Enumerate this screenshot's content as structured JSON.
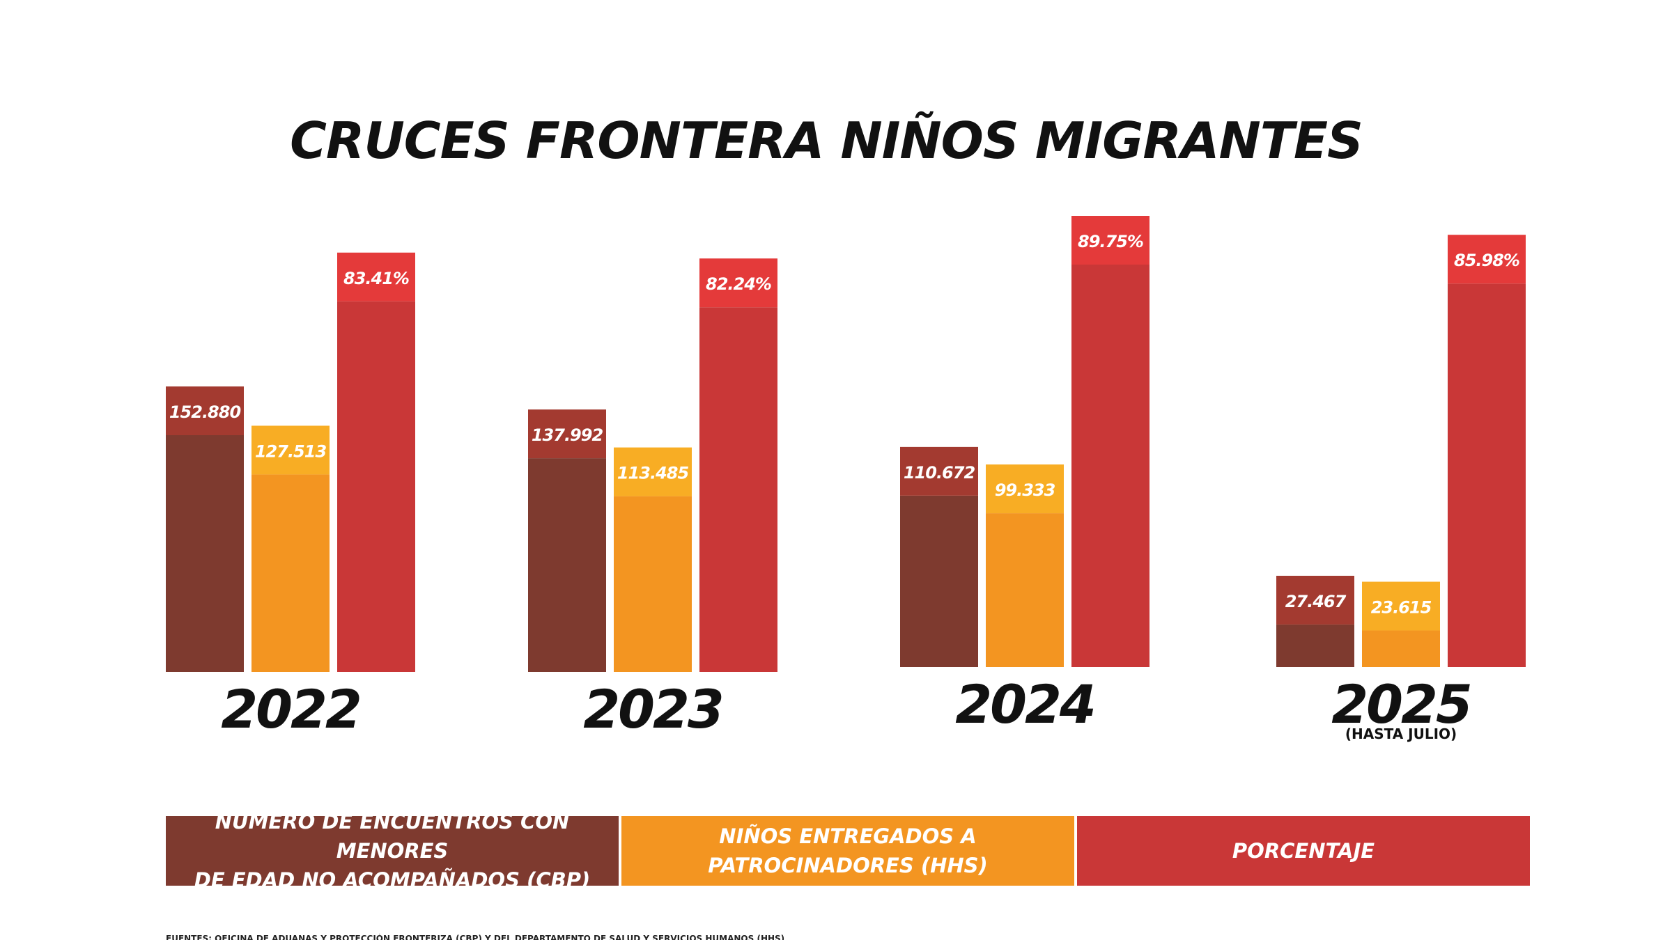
{
  "chart_data": {
    "type": "bar",
    "title": "CRUCES FRONTERA NIÑOS MIGRANTES",
    "categories": [
      "2022",
      "2023",
      "2024",
      "2025"
    ],
    "category_notes": [
      "",
      "",
      "",
      "(HASTA JULIO)"
    ],
    "series": [
      {
        "name": "NÚMERO DE ENCUENTROS CON MENORES\nDE EDAD NO ACOMPAÑADOS (CBP)",
        "values": [
          152880,
          137992,
          110672,
          27467
        ],
        "labels": [
          "152.880",
          "137.992",
          "110.672",
          "27.467"
        ],
        "color": "#7e3a2f",
        "label_color": "#a33a30"
      },
      {
        "name": "NIÑOS ENTREGADOS A\nPATROCINADORES (HHS)",
        "values": [
          127513,
          113485,
          99333,
          23615
        ],
        "labels": [
          "127.513",
          "113.485",
          "99.333",
          "23.615"
        ],
        "color": "#f39521",
        "label_color": "#f8ad24"
      },
      {
        "name": "PORCENTAJE",
        "values": [
          83.41,
          82.24,
          89.75,
          85.98
        ],
        "labels": [
          "83.41%",
          "82.24%",
          "89.75%",
          "85.98%"
        ],
        "unit": "%",
        "color": "#c93737",
        "label_color": "#e43a3a"
      }
    ],
    "grid": false,
    "legend_position": "bottom"
  },
  "footnote": "FUENTES: OFICINA DE ADUANAS Y PROTECCIÓN FRONTERIZA (CBP) Y DEL DEPARTAMENTO DE SALUD Y SERVICIOS HUMANOS (HHS)"
}
